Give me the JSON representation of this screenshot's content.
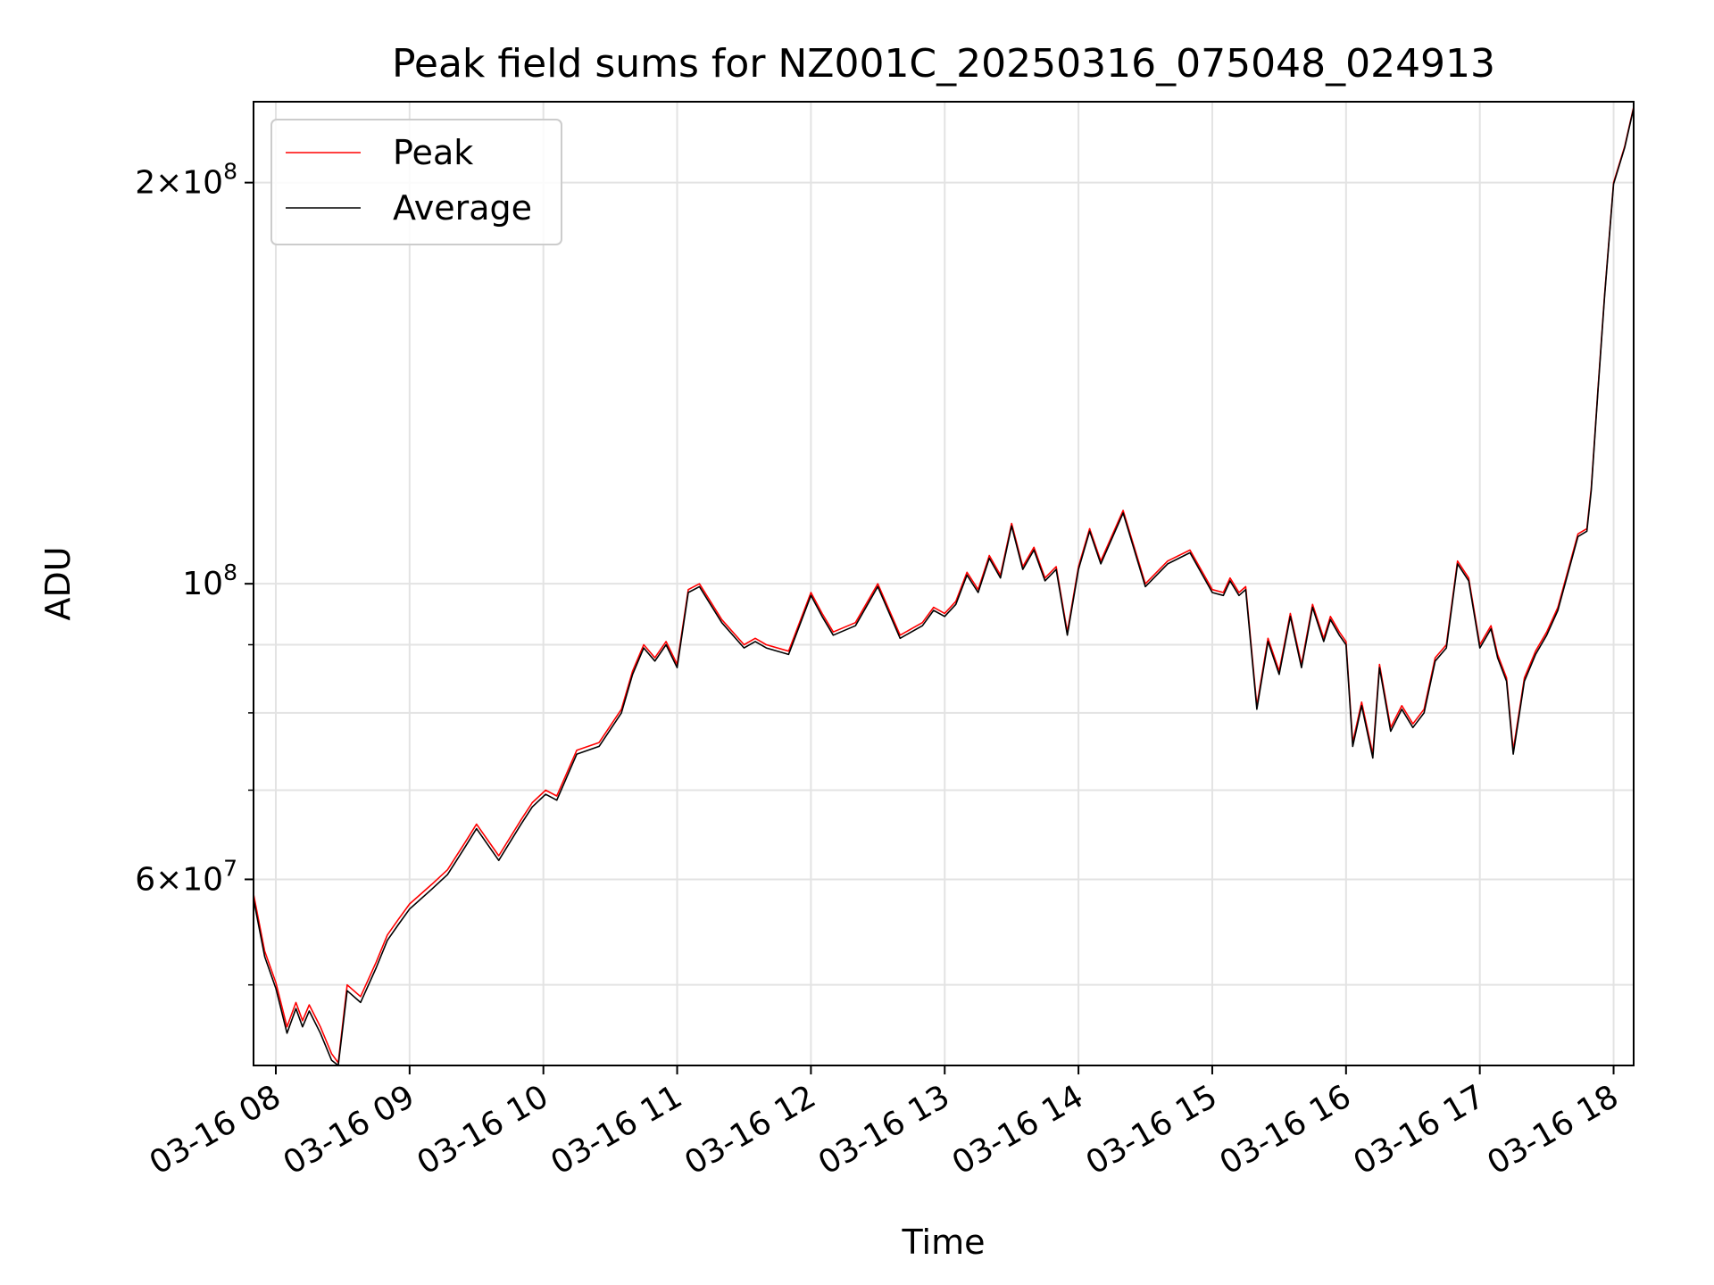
{
  "chart_data": {
    "type": "line",
    "title": "Peak field sums for NZ001C_20250316_075048_024913",
    "xlabel": "Time",
    "ylabel": "ADU",
    "y_scale": "log",
    "ylim": [
      43500000,
      230000000
    ],
    "xlim": [
      "2025-03-16 07:50",
      "2025-03-16 18:09"
    ],
    "grid": true,
    "legend_position": "top-left",
    "x_ticks": [
      "03-16 08",
      "03-16 09",
      "03-16 10",
      "03-16 11",
      "03-16 12",
      "03-16 13",
      "03-16 14",
      "03-16 15",
      "03-16 16",
      "03-16 17",
      "03-16 18"
    ],
    "y_ticks_major": [
      {
        "value": 60000000,
        "mantissa": "6",
        "exponent": "7"
      },
      {
        "value": 100000000,
        "mantissa": "",
        "exponent": "8"
      },
      {
        "value": 200000000,
        "mantissa": "2",
        "exponent": "8"
      }
    ],
    "y_ticks_minor": [
      50000000,
      70000000,
      80000000,
      90000000
    ],
    "series": [
      {
        "name": "Peak",
        "color": "#ff0000",
        "x": [
          "2025-03-16 07:50",
          "2025-03-16 07:55",
          "2025-03-16 08:00",
          "2025-03-16 08:05",
          "2025-03-16 08:09",
          "2025-03-16 08:12",
          "2025-03-16 08:15",
          "2025-03-16 08:20",
          "2025-03-16 08:25",
          "2025-03-16 08:28",
          "2025-03-16 08:32",
          "2025-03-16 08:38",
          "2025-03-16 08:45",
          "2025-03-16 08:50",
          "2025-03-16 08:55",
          "2025-03-16 09:00",
          "2025-03-16 09:10",
          "2025-03-16 09:17",
          "2025-03-16 09:25",
          "2025-03-16 09:30",
          "2025-03-16 09:40",
          "2025-03-16 09:50",
          "2025-03-16 09:55",
          "2025-03-16 10:01",
          "2025-03-16 10:06",
          "2025-03-16 10:15",
          "2025-03-16 10:25",
          "2025-03-16 10:35",
          "2025-03-16 10:40",
          "2025-03-16 10:45",
          "2025-03-16 10:50",
          "2025-03-16 10:55",
          "2025-03-16 11:00",
          "2025-03-16 11:05",
          "2025-03-16 11:10",
          "2025-03-16 11:20",
          "2025-03-16 11:30",
          "2025-03-16 11:35",
          "2025-03-16 11:40",
          "2025-03-16 11:50",
          "2025-03-16 12:00",
          "2025-03-16 12:05",
          "2025-03-16 12:10",
          "2025-03-16 12:20",
          "2025-03-16 12:30",
          "2025-03-16 12:40",
          "2025-03-16 12:50",
          "2025-03-16 12:55",
          "2025-03-16 13:00",
          "2025-03-16 13:05",
          "2025-03-16 13:10",
          "2025-03-16 13:15",
          "2025-03-16 13:20",
          "2025-03-16 13:25",
          "2025-03-16 13:30",
          "2025-03-16 13:35",
          "2025-03-16 13:40",
          "2025-03-16 13:45",
          "2025-03-16 13:50",
          "2025-03-16 13:55",
          "2025-03-16 14:00",
          "2025-03-16 14:05",
          "2025-03-16 14:10",
          "2025-03-16 14:20",
          "2025-03-16 14:30",
          "2025-03-16 14:40",
          "2025-03-16 14:50",
          "2025-03-16 15:00",
          "2025-03-16 15:05",
          "2025-03-16 15:08",
          "2025-03-16 15:12",
          "2025-03-16 15:15",
          "2025-03-16 15:20",
          "2025-03-16 15:25",
          "2025-03-16 15:30",
          "2025-03-16 15:35",
          "2025-03-16 15:40",
          "2025-03-16 15:45",
          "2025-03-16 15:50",
          "2025-03-16 15:53",
          "2025-03-16 15:57",
          "2025-03-16 16:00",
          "2025-03-16 16:03",
          "2025-03-16 16:07",
          "2025-03-16 16:12",
          "2025-03-16 16:15",
          "2025-03-16 16:20",
          "2025-03-16 16:25",
          "2025-03-16 16:30",
          "2025-03-16 16:35",
          "2025-03-16 16:40",
          "2025-03-16 16:45",
          "2025-03-16 16:50",
          "2025-03-16 16:55",
          "2025-03-16 17:00",
          "2025-03-16 17:05",
          "2025-03-16 17:08",
          "2025-03-16 17:12",
          "2025-03-16 17:15",
          "2025-03-16 17:20",
          "2025-03-16 17:25",
          "2025-03-16 17:30",
          "2025-03-16 17:35",
          "2025-03-16 17:40",
          "2025-03-16 17:44",
          "2025-03-16 17:48",
          "2025-03-16 17:50",
          "2025-03-16 17:53",
          "2025-03-16 17:56",
          "2025-03-16 18:00",
          "2025-03-16 18:05",
          "2025-03-16 18:09"
        ],
        "y": [
          58500000,
          53000000,
          50200000,
          46500000,
          48500000,
          47000000,
          48300000,
          46500000,
          44400000,
          43700000,
          50000000,
          49000000,
          52000000,
          54500000,
          56000000,
          57500000,
          59500000,
          61000000,
          64000000,
          66000000,
          62500000,
          66500000,
          68500000,
          70000000,
          69300000,
          75000000,
          76000000,
          80500000,
          86000000,
          90000000,
          88000000,
          90500000,
          87000000,
          99000000,
          100000000,
          94000000,
          90000000,
          91000000,
          90000000,
          89000000,
          98500000,
          95000000,
          92000000,
          93500000,
          100000000,
          91500000,
          93500000,
          96000000,
          95000000,
          97000000,
          102000000,
          99000000,
          105000000,
          101500000,
          111000000,
          103000000,
          106500000,
          101000000,
          103000000,
          92000000,
          103000000,
          110000000,
          104000000,
          113500000,
          100000000,
          104000000,
          106000000,
          99000000,
          98500000,
          101000000,
          98500000,
          99500000,
          81000000,
          91000000,
          86000000,
          95000000,
          87000000,
          96500000,
          91000000,
          94500000,
          92000000,
          90500000,
          76000000,
          81500000,
          74500000,
          87000000,
          78000000,
          81000000,
          78500000,
          80500000,
          88000000,
          90000000,
          104000000,
          101000000,
          90000000,
          93000000,
          88500000,
          85000000,
          75000000,
          85000000,
          89000000,
          92000000,
          96000000,
          103000000,
          109000000,
          110000000,
          118000000,
          140000000,
          165000000,
          200000000,
          213000000,
          228000000
        ]
      },
      {
        "name": "Average",
        "color": "#000000",
        "x": [
          "2025-03-16 07:50",
          "2025-03-16 07:55",
          "2025-03-16 08:00",
          "2025-03-16 08:05",
          "2025-03-16 08:09",
          "2025-03-16 08:12",
          "2025-03-16 08:15",
          "2025-03-16 08:20",
          "2025-03-16 08:25",
          "2025-03-16 08:28",
          "2025-03-16 08:32",
          "2025-03-16 08:38",
          "2025-03-16 08:45",
          "2025-03-16 08:50",
          "2025-03-16 08:55",
          "2025-03-16 09:00",
          "2025-03-16 09:10",
          "2025-03-16 09:17",
          "2025-03-16 09:25",
          "2025-03-16 09:30",
          "2025-03-16 09:40",
          "2025-03-16 09:50",
          "2025-03-16 09:55",
          "2025-03-16 10:01",
          "2025-03-16 10:06",
          "2025-03-16 10:15",
          "2025-03-16 10:25",
          "2025-03-16 10:35",
          "2025-03-16 10:40",
          "2025-03-16 10:45",
          "2025-03-16 10:50",
          "2025-03-16 10:55",
          "2025-03-16 11:00",
          "2025-03-16 11:05",
          "2025-03-16 11:10",
          "2025-03-16 11:20",
          "2025-03-16 11:30",
          "2025-03-16 11:35",
          "2025-03-16 11:40",
          "2025-03-16 11:50",
          "2025-03-16 12:00",
          "2025-03-16 12:05",
          "2025-03-16 12:10",
          "2025-03-16 12:20",
          "2025-03-16 12:30",
          "2025-03-16 12:40",
          "2025-03-16 12:50",
          "2025-03-16 12:55",
          "2025-03-16 13:00",
          "2025-03-16 13:05",
          "2025-03-16 13:10",
          "2025-03-16 13:15",
          "2025-03-16 13:20",
          "2025-03-16 13:25",
          "2025-03-16 13:30",
          "2025-03-16 13:35",
          "2025-03-16 13:40",
          "2025-03-16 13:45",
          "2025-03-16 13:50",
          "2025-03-16 13:55",
          "2025-03-16 14:00",
          "2025-03-16 14:05",
          "2025-03-16 14:10",
          "2025-03-16 14:20",
          "2025-03-16 14:30",
          "2025-03-16 14:40",
          "2025-03-16 14:50",
          "2025-03-16 15:00",
          "2025-03-16 15:05",
          "2025-03-16 15:08",
          "2025-03-16 15:12",
          "2025-03-16 15:15",
          "2025-03-16 15:20",
          "2025-03-16 15:25",
          "2025-03-16 15:30",
          "2025-03-16 15:35",
          "2025-03-16 15:40",
          "2025-03-16 15:45",
          "2025-03-16 15:50",
          "2025-03-16 15:53",
          "2025-03-16 15:57",
          "2025-03-16 16:00",
          "2025-03-16 16:03",
          "2025-03-16 16:07",
          "2025-03-16 16:12",
          "2025-03-16 16:15",
          "2025-03-16 16:20",
          "2025-03-16 16:25",
          "2025-03-16 16:30",
          "2025-03-16 16:35",
          "2025-03-16 16:40",
          "2025-03-16 16:45",
          "2025-03-16 16:50",
          "2025-03-16 16:55",
          "2025-03-16 17:00",
          "2025-03-16 17:05",
          "2025-03-16 17:08",
          "2025-03-16 17:12",
          "2025-03-16 17:15",
          "2025-03-16 17:20",
          "2025-03-16 17:25",
          "2025-03-16 17:30",
          "2025-03-16 17:35",
          "2025-03-16 17:40",
          "2025-03-16 17:44",
          "2025-03-16 17:48",
          "2025-03-16 17:50",
          "2025-03-16 17:53",
          "2025-03-16 17:56",
          "2025-03-16 18:00",
          "2025-03-16 18:05",
          "2025-03-16 18:09"
        ],
        "y": [
          58000000,
          52500000,
          49700000,
          46000000,
          48000000,
          46500000,
          47800000,
          46000000,
          43900000,
          43500000,
          49500000,
          48500000,
          51500000,
          54000000,
          55500000,
          57000000,
          59000000,
          60500000,
          63500000,
          65500000,
          62000000,
          66000000,
          68000000,
          69500000,
          68800000,
          74500000,
          75500000,
          80000000,
          85500000,
          89500000,
          87500000,
          90000000,
          86500000,
          98500000,
          99500000,
          93500000,
          89500000,
          90500000,
          89500000,
          88500000,
          98000000,
          94500000,
          91500000,
          93000000,
          99500000,
          91000000,
          93000000,
          95500000,
          94500000,
          96500000,
          101500000,
          98500000,
          104500000,
          101000000,
          110500000,
          102500000,
          106000000,
          100500000,
          102500000,
          91500000,
          102500000,
          109500000,
          103500000,
          113000000,
          99500000,
          103500000,
          105500000,
          98500000,
          98000000,
          100500000,
          98000000,
          99000000,
          80500000,
          90500000,
          85500000,
          94500000,
          86500000,
          96000000,
          90500000,
          94000000,
          91500000,
          90000000,
          75500000,
          81000000,
          74000000,
          86500000,
          77500000,
          80500000,
          78000000,
          80000000,
          87500000,
          89500000,
          103500000,
          100500000,
          89500000,
          92500000,
          88000000,
          84500000,
          74500000,
          84500000,
          88500000,
          91500000,
          95500000,
          102500000,
          108500000,
          109500000,
          117500000,
          139500000,
          164500000,
          199500000,
          212500000,
          227500000
        ]
      }
    ]
  }
}
